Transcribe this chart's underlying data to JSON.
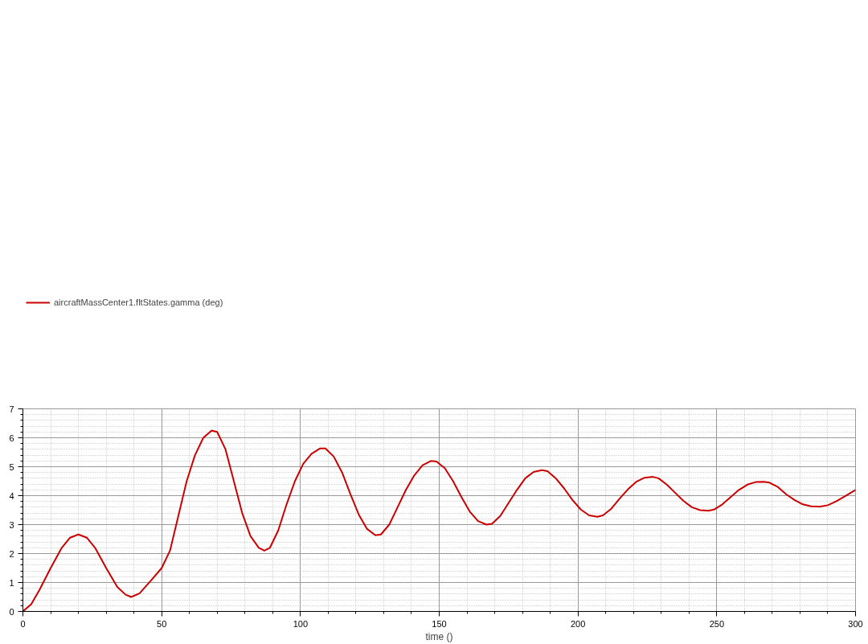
{
  "chart_data": {
    "type": "line",
    "xlabel": "time ()",
    "x": [
      0,
      3,
      6,
      10,
      14,
      17,
      20,
      23,
      26,
      30,
      34,
      37,
      39,
      42,
      46,
      50,
      53,
      56,
      59,
      62,
      65,
      68,
      70,
      73,
      76,
      79,
      82,
      85,
      87,
      89,
      92,
      95,
      98,
      101,
      104,
      107,
      109,
      112,
      115,
      118,
      121,
      124,
      127,
      129,
      132,
      135,
      138,
      141,
      144,
      147,
      149,
      152,
      155,
      158,
      161,
      164,
      167,
      169,
      172,
      175,
      178,
      181,
      184,
      187,
      189,
      192,
      195,
      198,
      201,
      204,
      207,
      209,
      212,
      215,
      218,
      221,
      224,
      227,
      229,
      232,
      235,
      238,
      241,
      244,
      247,
      249,
      252,
      255,
      258,
      261,
      264,
      267,
      269,
      272,
      275,
      278,
      281,
      284,
      287,
      290,
      293,
      296,
      300
    ],
    "series": [
      {
        "name": "aircraftMassCenter1.fltStates.gamma (deg)",
        "color": "#cc0000",
        "values": [
          0,
          0.25,
          0.75,
          1.5,
          2.2,
          2.55,
          2.66,
          2.55,
          2.2,
          1.5,
          0.85,
          0.58,
          0.5,
          0.62,
          1.05,
          1.5,
          2.1,
          3.3,
          4.5,
          5.4,
          6.0,
          6.25,
          6.2,
          5.6,
          4.5,
          3.4,
          2.6,
          2.2,
          2.1,
          2.2,
          2.8,
          3.7,
          4.5,
          5.1,
          5.45,
          5.63,
          5.63,
          5.35,
          4.8,
          4.05,
          3.35,
          2.85,
          2.63,
          2.66,
          3.0,
          3.6,
          4.2,
          4.7,
          5.05,
          5.2,
          5.18,
          4.95,
          4.5,
          3.95,
          3.45,
          3.12,
          3.0,
          3.03,
          3.3,
          3.75,
          4.2,
          4.6,
          4.82,
          4.88,
          4.85,
          4.6,
          4.25,
          3.85,
          3.52,
          3.32,
          3.27,
          3.32,
          3.55,
          3.9,
          4.22,
          4.48,
          4.62,
          4.65,
          4.6,
          4.38,
          4.1,
          3.82,
          3.6,
          3.5,
          3.48,
          3.52,
          3.7,
          3.95,
          4.2,
          4.38,
          4.47,
          4.48,
          4.45,
          4.3,
          4.05,
          3.85,
          3.7,
          3.63,
          3.62,
          3.67,
          3.8,
          3.97,
          4.2
        ]
      }
    ],
    "xlim": [
      0,
      300
    ],
    "xticks": [
      0,
      50,
      100,
      150,
      200,
      250,
      300
    ],
    "ylim": [
      0,
      7
    ],
    "yticks": [
      0,
      1,
      2,
      3,
      4,
      5,
      6,
      7
    ],
    "grid": true,
    "legend": "top left",
    "marker": "none",
    "line_style": "solid"
  }
}
